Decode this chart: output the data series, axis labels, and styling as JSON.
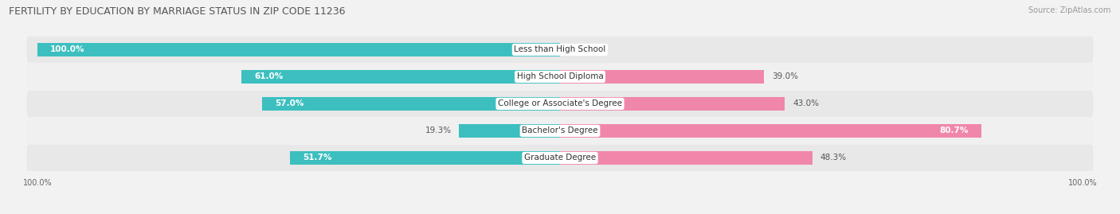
{
  "title": "FERTILITY BY EDUCATION BY MARRIAGE STATUS IN ZIP CODE 11236",
  "source": "Source: ZipAtlas.com",
  "categories": [
    "Less than High School",
    "High School Diploma",
    "College or Associate's Degree",
    "Bachelor's Degree",
    "Graduate Degree"
  ],
  "married": [
    100.0,
    61.0,
    57.0,
    19.3,
    51.7
  ],
  "unmarried": [
    0.0,
    39.0,
    43.0,
    80.7,
    48.3
  ],
  "married_color": "#3dbfbf",
  "unmarried_color": "#f087aa",
  "bg_color": "#f2f2f2",
  "row_colors": [
    "#e8e8e8",
    "#f0f0f0"
  ],
  "title_fontsize": 9,
  "bar_fontsize": 7.5,
  "label_fontsize": 7.5,
  "source_fontsize": 7,
  "figsize": [
    14.06,
    2.69
  ],
  "dpi": 100
}
